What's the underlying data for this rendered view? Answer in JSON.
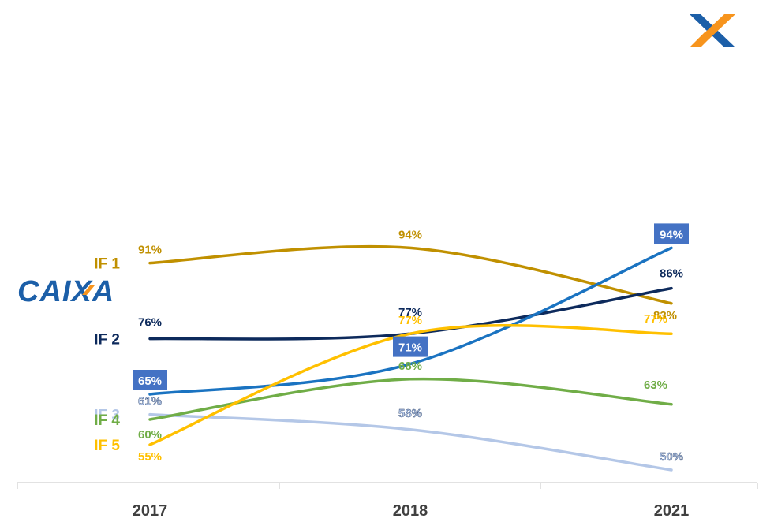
{
  "chart_data": {
    "type": "line",
    "categories": [
      "2017",
      "2018",
      "2021"
    ],
    "ylim": [
      45,
      97
    ],
    "grid": false,
    "legend": "left labels",
    "series": [
      {
        "name": "IF 1",
        "color": "#c09000",
        "values": [
          91,
          94,
          83
        ],
        "labels": [
          "91%",
          "94%",
          "83%"
        ]
      },
      {
        "name": "IF 2",
        "color": "#0d2a5c",
        "values": [
          76,
          77,
          86
        ],
        "labels": [
          "76%",
          "77%",
          "86%"
        ]
      },
      {
        "name": "CAIXA",
        "color": "#1a73c1",
        "values": [
          65,
          71,
          94
        ],
        "labels": [
          "65%",
          "71%",
          "94%"
        ],
        "boxed_labels": true,
        "box_color": "#4472c4",
        "logo": true
      },
      {
        "name": "IF 3",
        "color": "#b4c7e7",
        "values": [
          61,
          58,
          50
        ],
        "labels": [
          "61%",
          "58%",
          "50%"
        ]
      },
      {
        "name": "IF 4",
        "color": "#70ad47",
        "values": [
          60,
          68,
          63
        ],
        "labels": [
          "60%",
          "68%",
          "63%"
        ]
      },
      {
        "name": "IF 5",
        "color": "#ffc000",
        "values": [
          55,
          77,
          77
        ],
        "labels": [
          "55%",
          "77%",
          "77%"
        ]
      }
    ],
    "logo_colors": {
      "caixa_blue": "#1c5fa8",
      "caixa_orange": "#f7941d"
    }
  }
}
